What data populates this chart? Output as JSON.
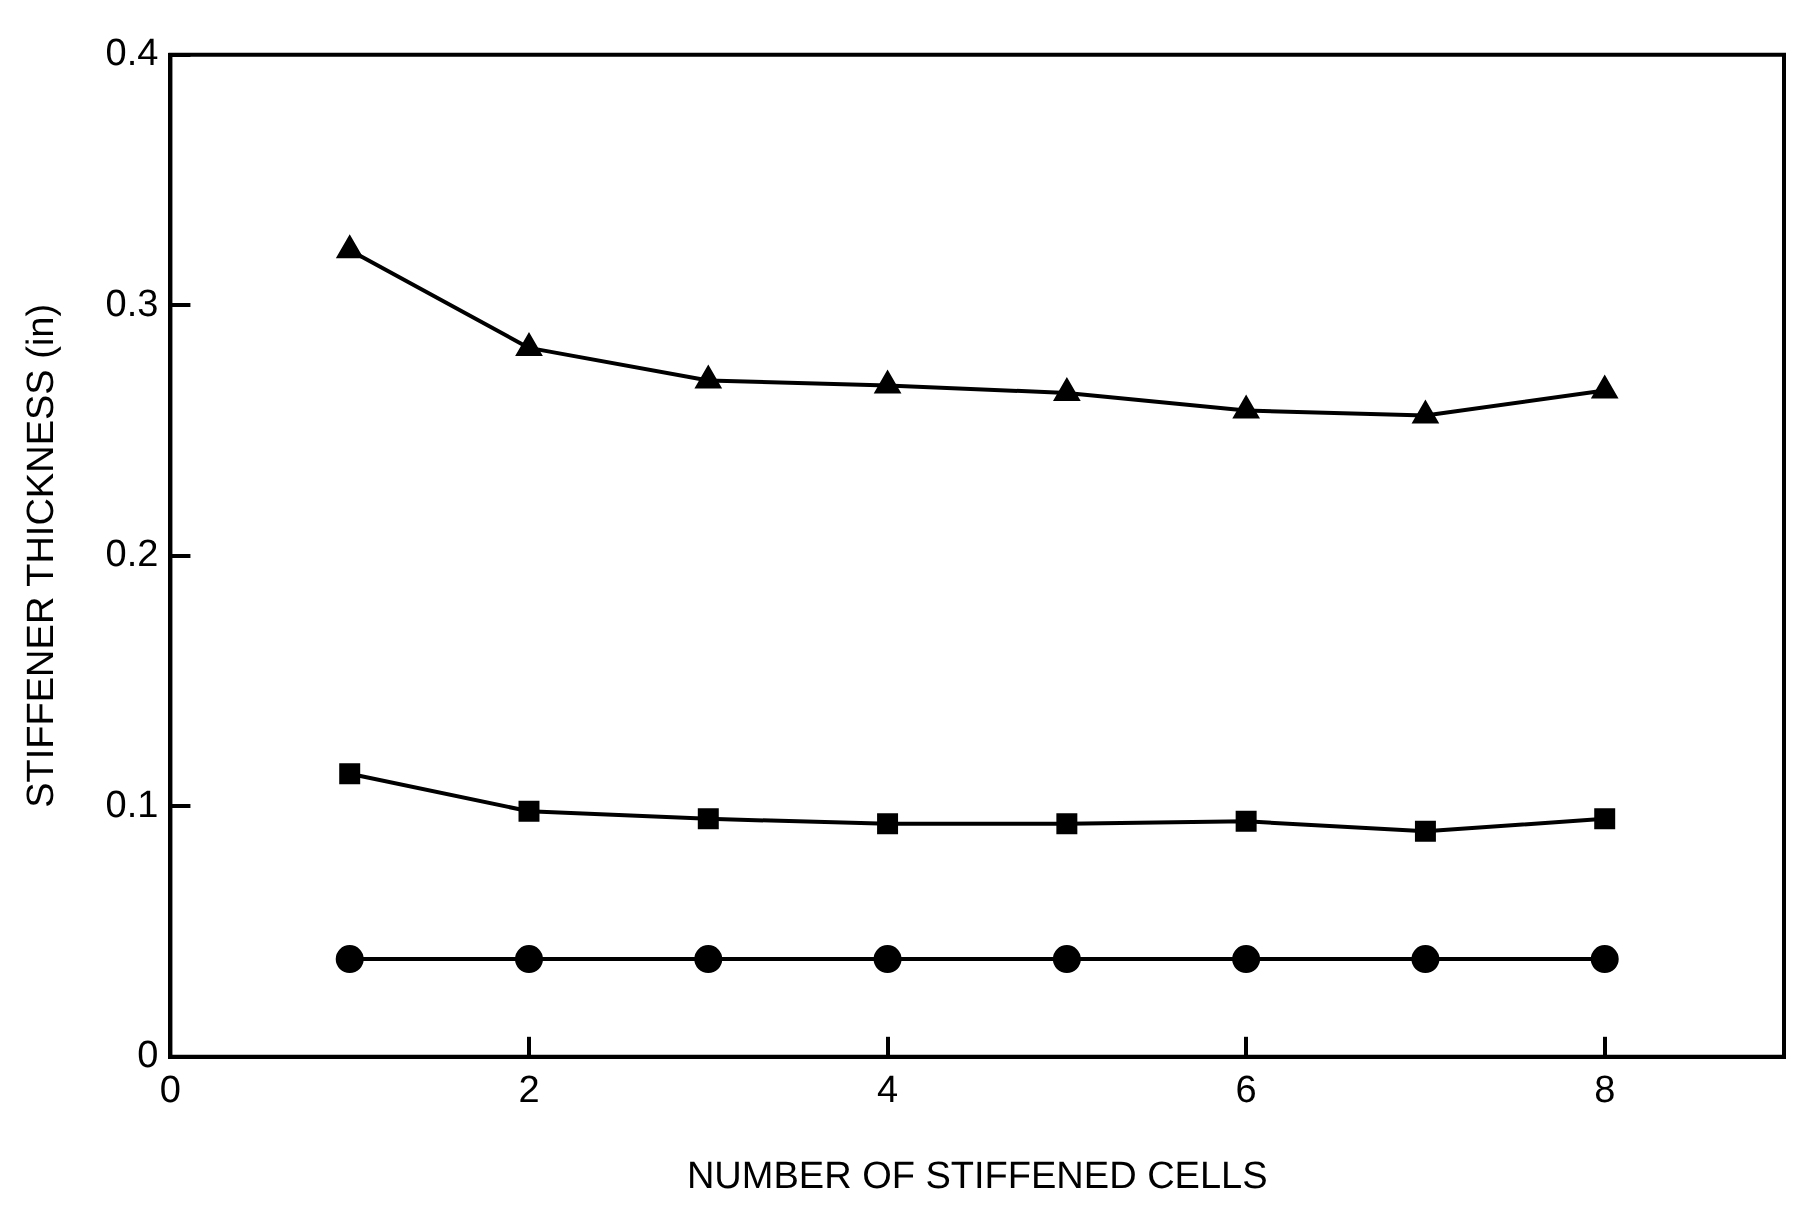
{
  "chart_data": {
    "type": "line",
    "xlabel": "NUMBER OF STIFFENED CELLS",
    "ylabel": "STIFFENER THICKNESS (in)",
    "x": [
      1,
      2,
      3,
      4,
      5,
      6,
      7,
      8
    ],
    "xlim": [
      0,
      9
    ],
    "xticks": [
      0,
      2,
      4,
      6,
      8
    ],
    "ylim": [
      0,
      0.4
    ],
    "yticks": [
      0,
      0.1,
      0.2,
      0.3,
      0.4
    ],
    "grid": false,
    "legend": false,
    "line_style": "solid",
    "series": [
      {
        "color": "#000000",
        "marker": "triangle",
        "values": [
          0.322,
          0.283,
          0.27,
          0.268,
          0.265,
          0.258,
          0.256,
          0.266
        ]
      },
      {
        "color": "#000000",
        "marker": "square",
        "values": [
          0.113,
          0.098,
          0.095,
          0.093,
          0.093,
          0.094,
          0.09,
          0.095
        ]
      },
      {
        "color": "#000000",
        "marker": "circle",
        "values": [
          0.039,
          0.039,
          0.039,
          0.039,
          0.039,
          0.039,
          0.039,
          0.039
        ]
      }
    ]
  }
}
